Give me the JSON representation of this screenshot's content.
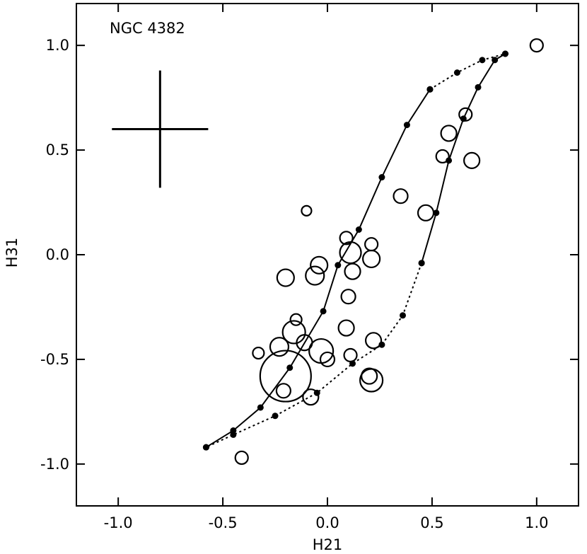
{
  "chart_data": {
    "type": "scatter",
    "annotation": "NGC 4382",
    "xlabel": "H21",
    "ylabel": "H31",
    "xlim": [
      -1.2,
      1.2
    ],
    "ylim": [
      -1.2,
      1.2
    ],
    "xticks": [
      -1.0,
      -0.5,
      0.0,
      0.5,
      1.0
    ],
    "yticks": [
      -1.0,
      -0.5,
      0.0,
      0.5,
      1.0
    ],
    "xtick_labels": [
      "-1.0",
      "-0.5",
      "0.0",
      "0.5",
      "1.0"
    ],
    "ytick_labels": [
      "-1.0",
      "-0.5",
      "0.0",
      "0.5",
      "1.0"
    ],
    "grid": false,
    "error_bar_cross": {
      "x": -0.8,
      "y": 0.6,
      "xerr": 0.23,
      "yerr": 0.28
    },
    "model_tracks": [
      {
        "style": "solid",
        "points": [
          [
            -0.58,
            -0.92
          ],
          [
            -0.45,
            -0.84
          ],
          [
            -0.32,
            -0.73
          ],
          [
            -0.18,
            -0.54
          ],
          [
            -0.02,
            -0.27
          ],
          [
            0.05,
            -0.05
          ],
          [
            0.15,
            0.12
          ],
          [
            0.26,
            0.37
          ],
          [
            0.38,
            0.62
          ],
          [
            0.49,
            0.79
          ]
        ]
      },
      {
        "style": "dotted",
        "points": [
          [
            0.49,
            0.79
          ],
          [
            0.62,
            0.87
          ],
          [
            0.74,
            0.93
          ],
          [
            0.85,
            0.96
          ]
        ]
      },
      {
        "style": "solid",
        "points": [
          [
            0.85,
            0.96
          ],
          [
            0.8,
            0.93
          ],
          [
            0.72,
            0.8
          ],
          [
            0.65,
            0.65
          ],
          [
            0.58,
            0.45
          ],
          [
            0.52,
            0.2
          ],
          [
            0.45,
            -0.04
          ]
        ]
      },
      {
        "style": "dotted",
        "points": [
          [
            0.45,
            -0.04
          ],
          [
            0.36,
            -0.29
          ],
          [
            0.26,
            -0.43
          ],
          [
            0.12,
            -0.52
          ],
          [
            -0.05,
            -0.66
          ],
          [
            -0.25,
            -0.77
          ],
          [
            -0.45,
            -0.86
          ],
          [
            -0.58,
            -0.92
          ]
        ]
      }
    ],
    "points": [
      {
        "x": 1.0,
        "y": 1.0,
        "size": 9
      },
      {
        "x": 0.66,
        "y": 0.67,
        "size": 9
      },
      {
        "x": 0.58,
        "y": 0.58,
        "size": 11
      },
      {
        "x": 0.55,
        "y": 0.47,
        "size": 9
      },
      {
        "x": 0.69,
        "y": 0.45,
        "size": 11
      },
      {
        "x": 0.35,
        "y": 0.28,
        "size": 10
      },
      {
        "x": 0.47,
        "y": 0.2,
        "size": 11
      },
      {
        "x": -0.1,
        "y": 0.21,
        "size": 7
      },
      {
        "x": 0.09,
        "y": 0.08,
        "size": 9
      },
      {
        "x": 0.21,
        "y": 0.05,
        "size": 9
      },
      {
        "x": 0.11,
        "y": 0.01,
        "size": 15
      },
      {
        "x": 0.21,
        "y": -0.02,
        "size": 12
      },
      {
        "x": -0.04,
        "y": -0.05,
        "size": 12
      },
      {
        "x": -0.06,
        "y": -0.1,
        "size": 13
      },
      {
        "x": -0.2,
        "y": -0.11,
        "size": 12
      },
      {
        "x": 0.12,
        "y": -0.08,
        "size": 11
      },
      {
        "x": 0.1,
        "y": -0.2,
        "size": 10
      },
      {
        "x": 0.09,
        "y": -0.35,
        "size": 11
      },
      {
        "x": -0.15,
        "y": -0.31,
        "size": 8
      },
      {
        "x": -0.16,
        "y": -0.37,
        "size": 16
      },
      {
        "x": -0.11,
        "y": -0.42,
        "size": 11
      },
      {
        "x": 0.22,
        "y": -0.41,
        "size": 11
      },
      {
        "x": -0.23,
        "y": -0.44,
        "size": 13
      },
      {
        "x": -0.03,
        "y": -0.46,
        "size": 17
      },
      {
        "x": -0.33,
        "y": -0.47,
        "size": 8
      },
      {
        "x": 0.11,
        "y": -0.48,
        "size": 9
      },
      {
        "x": 0.0,
        "y": -0.5,
        "size": 10
      },
      {
        "x": -0.2,
        "y": -0.58,
        "size": 36
      },
      {
        "x": 0.2,
        "y": -0.58,
        "size": 11
      },
      {
        "x": 0.21,
        "y": -0.6,
        "size": 16
      },
      {
        "x": -0.21,
        "y": -0.65,
        "size": 10
      },
      {
        "x": -0.08,
        "y": -0.68,
        "size": 11
      },
      {
        "x": -0.41,
        "y": -0.97,
        "size": 9
      }
    ]
  }
}
